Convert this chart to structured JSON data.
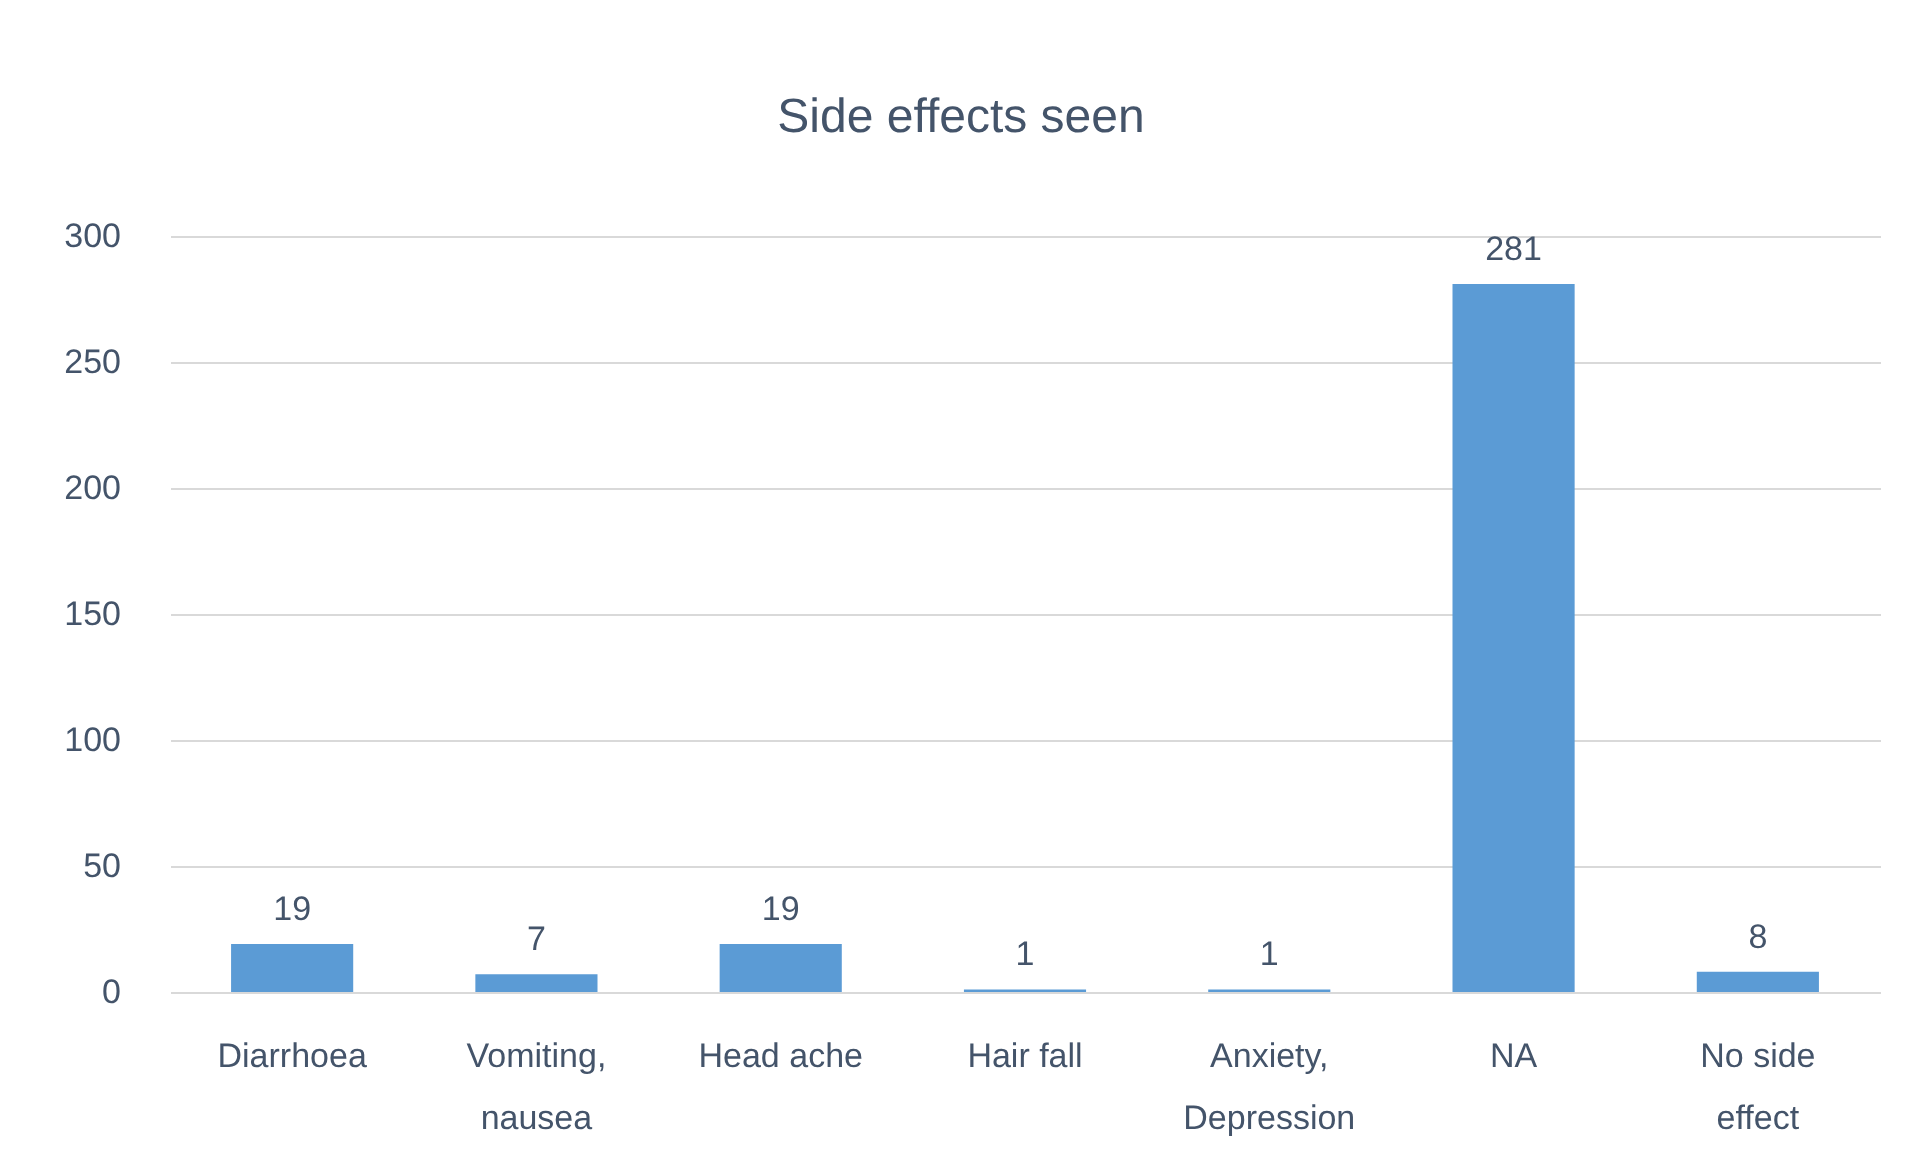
{
  "chart_data": {
    "type": "bar",
    "title": "Side effects seen",
    "categories": [
      "Diarrhoea",
      "Vomiting, nausea",
      "Head ache",
      "Hair fall",
      "Anxiety, Depression",
      "NA",
      "No side effect"
    ],
    "values": [
      19,
      7,
      19,
      1,
      1,
      281,
      8
    ],
    "color": "#5b9bd5",
    "ylim": [
      0,
      300
    ],
    "yticks": [
      0,
      50,
      100,
      150,
      200,
      250,
      300
    ],
    "grid": "y",
    "data_labels": true
  }
}
